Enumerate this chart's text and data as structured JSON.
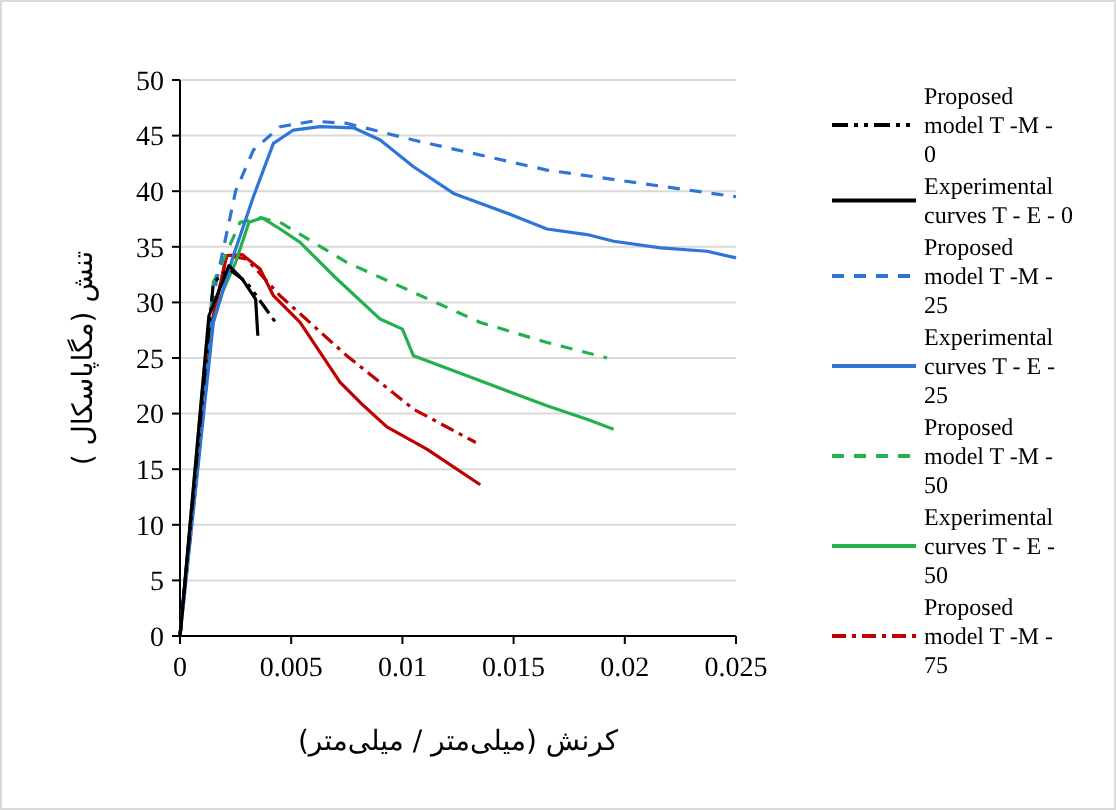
{
  "chart_data": {
    "type": "line",
    "xlabel": "کرنش (میلی‌متر / میلی‌متر)",
    "ylabel": "تنش (مگاپاسکال )",
    "xlim": [
      0,
      0.025
    ],
    "ylim": [
      0,
      50
    ],
    "xticks": [
      0,
      0.005,
      0.01,
      0.015,
      0.02,
      0.025
    ],
    "yticks": [
      0,
      5,
      10,
      15,
      20,
      25,
      30,
      35,
      40,
      45,
      50
    ],
    "grid": "y",
    "legend": "right",
    "marker": "none",
    "series": [
      {
        "name": "Proposed model  T -M - 0",
        "color": "#000000",
        "line_style": "dashdotdot",
        "x": [
          0,
          0.0015,
          0.0022,
          0.003,
          0.0043
        ],
        "values": [
          0,
          31.8,
          33.0,
          31.8,
          28.2
        ]
      },
      {
        "name": "Experimental curves T - E - 0",
        "color": "#000000",
        "line_style": "solid",
        "x": [
          0,
          0.0013,
          0.0022,
          0.0028,
          0.0034,
          0.0035
        ],
        "values": [
          0,
          28.8,
          33.3,
          32.1,
          30.3,
          27.0
        ]
      },
      {
        "name": "Proposed model  T -M - 25",
        "color": "#2e75d6",
        "line_style": "dashed",
        "x": [
          0,
          0.0015,
          0.0025,
          0.0033,
          0.0045,
          0.006,
          0.0075,
          0.0105,
          0.0165,
          0.025
        ],
        "values": [
          0,
          30.6,
          40,
          43.7,
          45.8,
          46.3,
          46.1,
          44.6,
          41.9,
          39.5
        ]
      },
      {
        "name": "Experimental curves T - E - 25",
        "color": "#2e75d6",
        "line_style": "solid",
        "x": [
          0,
          0.0015,
          0.0024,
          0.0033,
          0.0042,
          0.0051,
          0.0063,
          0.0078,
          0.009,
          0.0105,
          0.0123,
          0.0138,
          0.015,
          0.0165,
          0.0183,
          0.0195,
          0.0216,
          0.0237,
          0.025
        ],
        "values": [
          0,
          28.2,
          34.2,
          39.5,
          44.3,
          45.5,
          45.8,
          45.7,
          44.6,
          42.2,
          39.8,
          38.7,
          37.8,
          36.6,
          36.1,
          35.5,
          34.9,
          34.6,
          34.0
        ]
      },
      {
        "name": "Proposed model  T -M - 50",
        "color": "#22b14c",
        "line_style": "dashed",
        "x": [
          0,
          0.0015,
          0.0027,
          0.0036,
          0.0045,
          0.0075,
          0.0105,
          0.0135,
          0.0165,
          0.0192
        ],
        "values": [
          0,
          31.8,
          37.2,
          37.6,
          37.2,
          33.6,
          30.9,
          28.2,
          26.4,
          25.0
        ]
      },
      {
        "name": "Experimental curves T - E - 50",
        "color": "#22b14c",
        "line_style": "solid",
        "x": [
          0,
          0.0012,
          0.0019,
          0.0025,
          0.0031,
          0.0037,
          0.0045,
          0.0054,
          0.0069,
          0.009,
          0.01,
          0.0105,
          0.0117,
          0.0129,
          0.0141,
          0.0165,
          0.0183,
          0.0195
        ],
        "values": [
          0,
          26.4,
          30.9,
          33.6,
          37.2,
          37.6,
          36.6,
          35.4,
          32.4,
          28.5,
          27.6,
          25.2,
          24.3,
          23.4,
          22.5,
          20.7,
          19.5,
          18.6
        ]
      },
      {
        "name": "Proposed model  T -M - 75",
        "color": "#c00000",
        "line_style": "dashdot",
        "x": [
          0,
          0.0015,
          0.0021,
          0.003,
          0.0045,
          0.0075,
          0.0105,
          0.0133
        ],
        "values": [
          0,
          28.8,
          34.2,
          33.9,
          30.6,
          25.2,
          20.4,
          17.4
        ]
      },
      {
        "color": "#c00000",
        "line_style": "solid",
        "x": [
          0,
          0.0009,
          0.0015,
          0.0021,
          0.0028,
          0.0036,
          0.0042,
          0.0054,
          0.0072,
          0.0081,
          0.0093,
          0.0111,
          0.0135
        ],
        "values": [
          0,
          18.6,
          28.8,
          34.2,
          34.3,
          33.0,
          30.6,
          28.2,
          22.8,
          21.0,
          18.8,
          16.8,
          13.6
        ]
      }
    ]
  }
}
